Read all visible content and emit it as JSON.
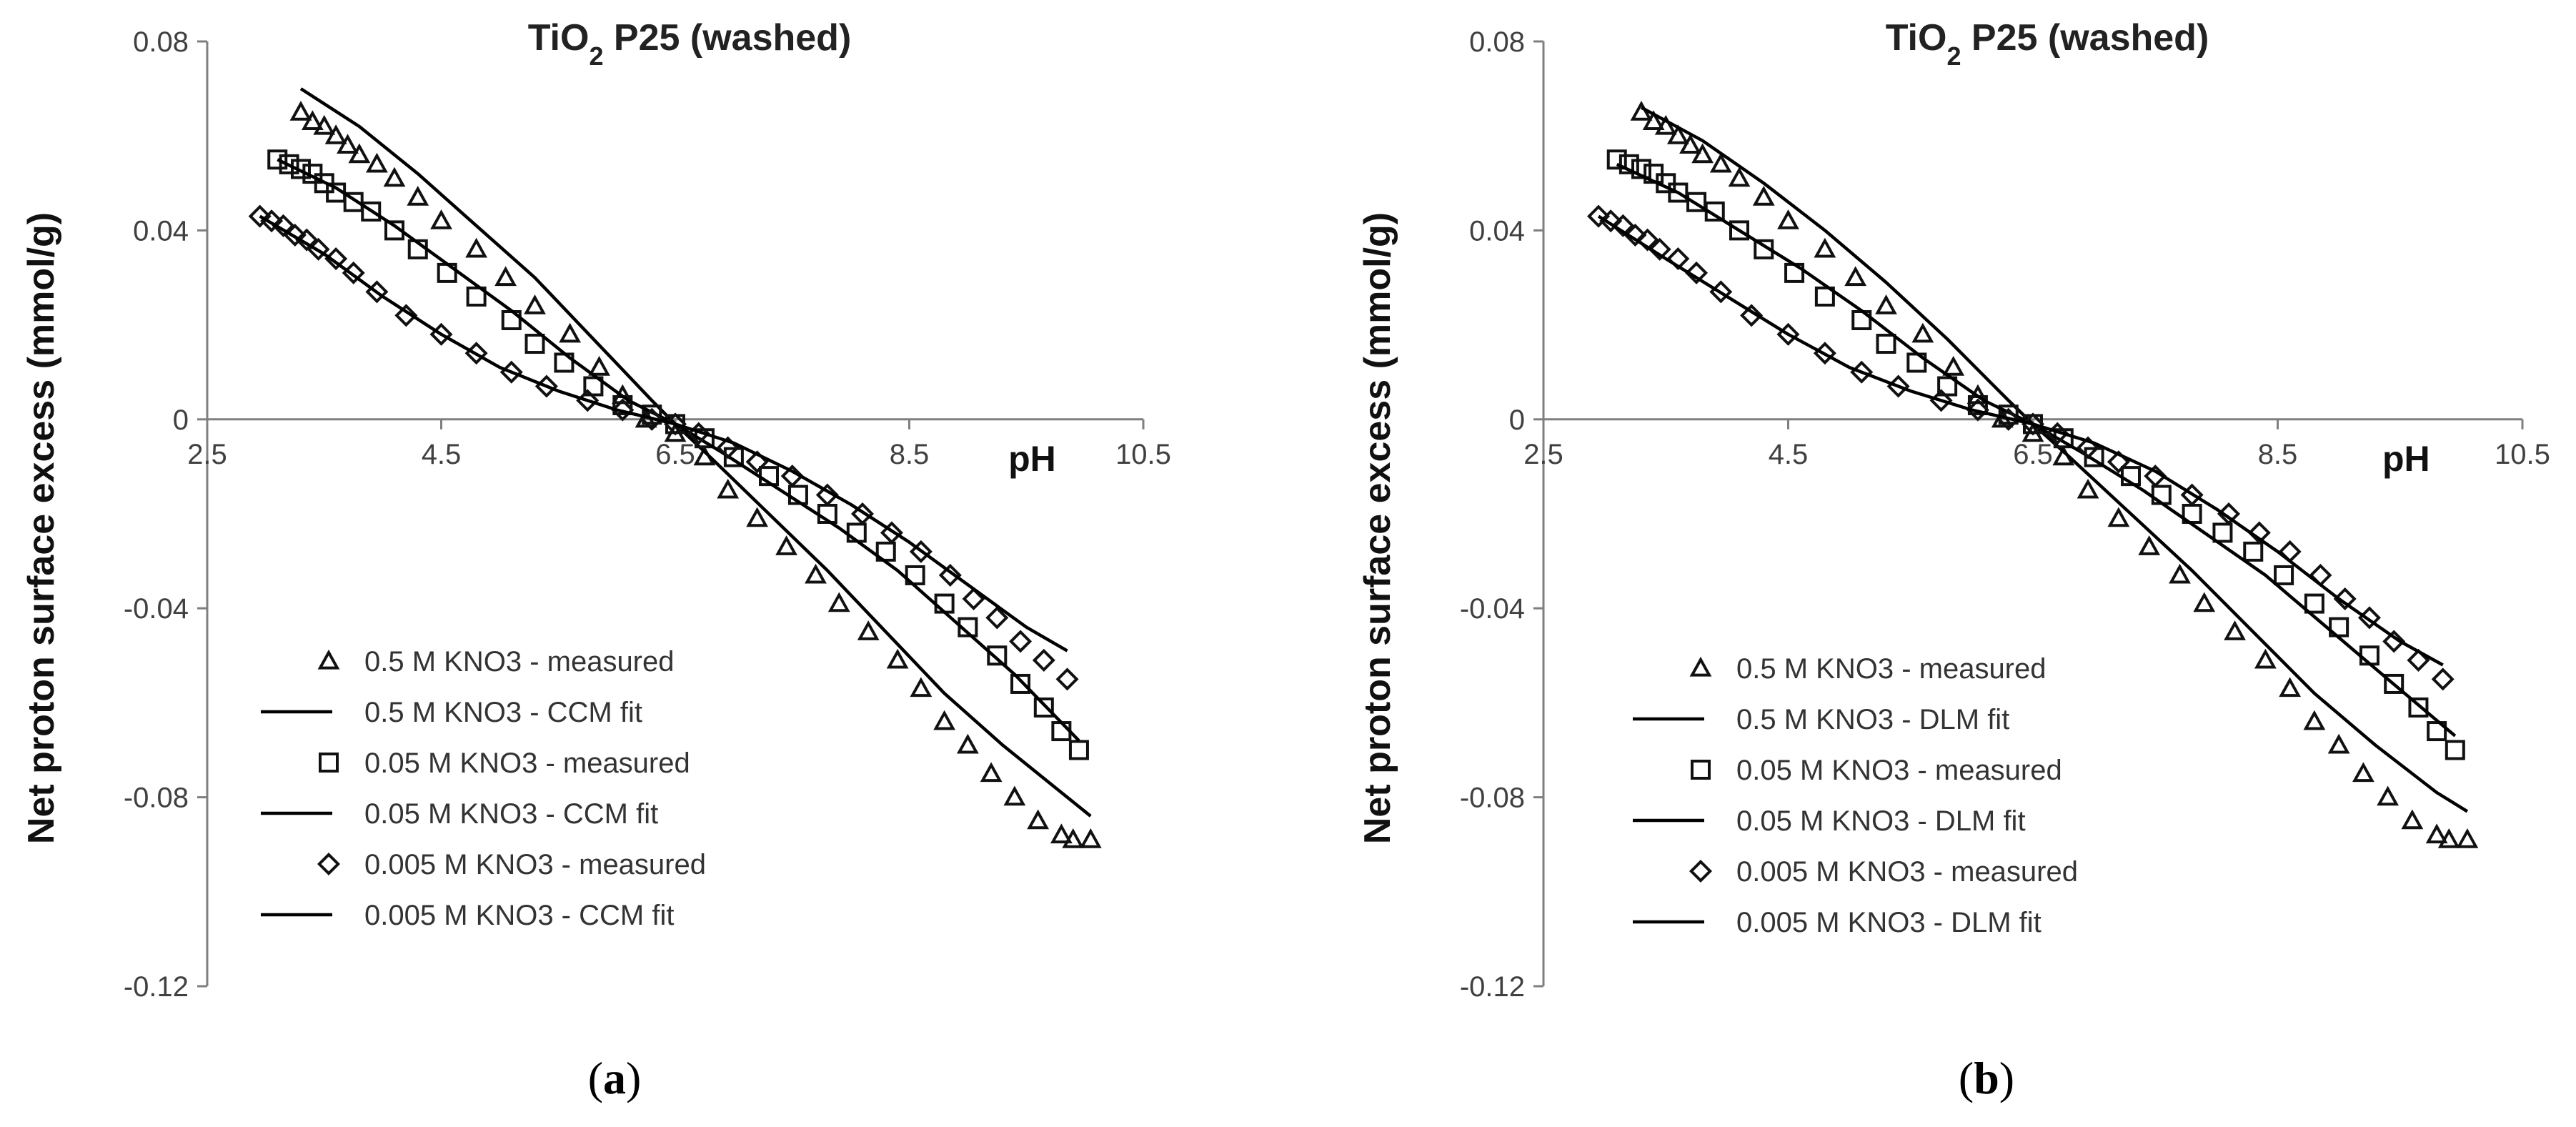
{
  "chart_data": [
    {
      "type": "scatter",
      "panel": "a",
      "caption": "a",
      "title": "TiO",
      "title_sub": "2",
      "title_rest": " P25 (washed)",
      "xlabel": "pH",
      "ylabel": "Net proton surface excess (mmol/g)",
      "xlim": [
        2.5,
        10.5
      ],
      "ylim": [
        -0.12,
        0.08
      ],
      "xticks": [
        "2.5",
        "4.5",
        "6.5",
        "8.5",
        "10.5"
      ],
      "xtick_values": [
        2.5,
        4.5,
        6.5,
        8.5,
        10.5
      ],
      "yticks": [
        "0.08",
        "0.04",
        "0",
        "-0.04",
        "-0.08",
        "-0.12"
      ],
      "ytick_values": [
        0.08,
        0.04,
        0,
        -0.04,
        -0.08,
        -0.12
      ],
      "legend_position": "lower-left",
      "series": [
        {
          "name": "0.5 M KNO3 - measured",
          "kind": "measured",
          "marker": "triangle",
          "x": [
            3.3,
            3.4,
            3.5,
            3.6,
            3.7,
            3.8,
            3.95,
            4.1,
            4.3,
            4.5,
            4.8,
            5.05,
            5.3,
            5.6,
            5.85,
            6.05,
            6.25,
            6.5,
            6.75,
            6.95,
            7.2,
            7.45,
            7.7,
            7.9,
            8.15,
            8.4,
            8.6,
            8.8,
            9.0,
            9.2,
            9.4,
            9.6,
            9.8,
            9.9,
            10.05
          ],
          "y": [
            0.065,
            0.063,
            0.062,
            0.06,
            0.058,
            0.056,
            0.054,
            0.051,
            0.047,
            0.042,
            0.036,
            0.03,
            0.024,
            0.018,
            0.011,
            0.005,
            0.0,
            -0.003,
            -0.008,
            -0.015,
            -0.021,
            -0.027,
            -0.033,
            -0.039,
            -0.045,
            -0.051,
            -0.057,
            -0.064,
            -0.069,
            -0.075,
            -0.08,
            -0.085,
            -0.088,
            -0.089,
            -0.089
          ]
        },
        {
          "name": "0.5 M KNO3 - CCM fit",
          "kind": "fit",
          "x": [
            3.3,
            3.8,
            4.3,
            4.8,
            5.3,
            5.8,
            6.3,
            6.5,
            6.8,
            7.3,
            7.8,
            8.3,
            8.8,
            9.3,
            9.8,
            10.05
          ],
          "y": [
            0.07,
            0.062,
            0.052,
            0.041,
            0.03,
            0.017,
            0.004,
            -0.001,
            -0.008,
            -0.02,
            -0.032,
            -0.045,
            -0.058,
            -0.069,
            -0.079,
            -0.084
          ]
        },
        {
          "name": "0.05 M KNO3 - measured",
          "kind": "measured",
          "marker": "square",
          "x": [
            3.1,
            3.2,
            3.3,
            3.4,
            3.5,
            3.6,
            3.75,
            3.9,
            4.1,
            4.3,
            4.55,
            4.8,
            5.1,
            5.3,
            5.55,
            5.8,
            6.05,
            6.3,
            6.5,
            6.75,
            7.0,
            7.3,
            7.55,
            7.8,
            8.05,
            8.3,
            8.55,
            8.8,
            9.0,
            9.25,
            9.45,
            9.65,
            9.8,
            9.95
          ],
          "y": [
            0.055,
            0.054,
            0.053,
            0.052,
            0.05,
            0.048,
            0.046,
            0.044,
            0.04,
            0.036,
            0.031,
            0.026,
            0.021,
            0.016,
            0.012,
            0.007,
            0.003,
            0.001,
            -0.001,
            -0.004,
            -0.008,
            -0.012,
            -0.016,
            -0.02,
            -0.024,
            -0.028,
            -0.033,
            -0.039,
            -0.044,
            -0.05,
            -0.056,
            -0.061,
            -0.066,
            -0.07
          ]
        },
        {
          "name": "0.05 M KNO3 - CCM fit",
          "kind": "fit",
          "x": [
            3.1,
            3.6,
            4.1,
            4.6,
            5.1,
            5.6,
            6.1,
            6.5,
            6.9,
            7.4,
            7.9,
            8.4,
            8.9,
            9.4,
            9.95
          ],
          "y": [
            0.055,
            0.049,
            0.041,
            0.032,
            0.023,
            0.013,
            0.004,
            -0.001,
            -0.007,
            -0.015,
            -0.023,
            -0.032,
            -0.043,
            -0.054,
            -0.068
          ]
        },
        {
          "name": "0.005 M KNO3 - measured",
          "kind": "measured",
          "marker": "diamond",
          "x": [
            2.95,
            3.05,
            3.15,
            3.25,
            3.35,
            3.45,
            3.6,
            3.75,
            3.95,
            4.2,
            4.5,
            4.8,
            5.1,
            5.4,
            5.75,
            6.05,
            6.3,
            6.5,
            6.7,
            6.95,
            7.2,
            7.5,
            7.8,
            8.1,
            8.35,
            8.6,
            8.85,
            9.05,
            9.25,
            9.45,
            9.65,
            9.85
          ],
          "y": [
            0.043,
            0.042,
            0.041,
            0.039,
            0.038,
            0.036,
            0.034,
            0.031,
            0.027,
            0.022,
            0.018,
            0.014,
            0.01,
            0.007,
            0.004,
            0.002,
            0.0,
            -0.001,
            -0.003,
            -0.006,
            -0.009,
            -0.012,
            -0.016,
            -0.02,
            -0.024,
            -0.028,
            -0.033,
            -0.038,
            -0.042,
            -0.047,
            -0.051,
            -0.055
          ]
        },
        {
          "name": "0.005 M KNO3 - CCM fit",
          "kind": "fit",
          "x": [
            2.95,
            3.5,
            4.0,
            4.5,
            5.0,
            5.5,
            6.0,
            6.5,
            7.0,
            7.5,
            8.0,
            8.5,
            9.0,
            9.5,
            9.85
          ],
          "y": [
            0.043,
            0.035,
            0.026,
            0.018,
            0.011,
            0.006,
            0.002,
            -0.001,
            -0.005,
            -0.011,
            -0.018,
            -0.026,
            -0.035,
            -0.044,
            -0.049
          ]
        }
      ]
    },
    {
      "type": "scatter",
      "panel": "b",
      "caption": "b",
      "title": "TiO",
      "title_sub": "2",
      "title_rest": " P25 (washed)",
      "xlabel": "pH",
      "ylabel": "Net proton surface excess (mmol/g)",
      "xlim": [
        2.5,
        10.5
      ],
      "ylim": [
        -0.12,
        0.08
      ],
      "xticks": [
        "2.5",
        "4.5",
        "6.5",
        "8.5",
        "10.5"
      ],
      "xtick_values": [
        2.5,
        4.5,
        6.5,
        8.5,
        10.5
      ],
      "yticks": [
        "0.08",
        "0.04",
        "0",
        "-0.04",
        "-0.08",
        "-0.12"
      ],
      "ytick_values": [
        0.08,
        0.04,
        0,
        -0.04,
        -0.08,
        -0.12
      ],
      "legend_position": "lower-left",
      "series": [
        {
          "name": "0.5 M KNO3 - measured",
          "kind": "measured",
          "marker": "triangle",
          "x": [
            3.3,
            3.4,
            3.5,
            3.6,
            3.7,
            3.8,
            3.95,
            4.1,
            4.3,
            4.5,
            4.8,
            5.05,
            5.3,
            5.6,
            5.85,
            6.05,
            6.25,
            6.5,
            6.75,
            6.95,
            7.2,
            7.45,
            7.7,
            7.9,
            8.15,
            8.4,
            8.6,
            8.8,
            9.0,
            9.2,
            9.4,
            9.6,
            9.8,
            9.9,
            10.05
          ],
          "y": [
            0.065,
            0.063,
            0.062,
            0.06,
            0.058,
            0.056,
            0.054,
            0.051,
            0.047,
            0.042,
            0.036,
            0.03,
            0.024,
            0.018,
            0.011,
            0.005,
            0.0,
            -0.003,
            -0.008,
            -0.015,
            -0.021,
            -0.027,
            -0.033,
            -0.039,
            -0.045,
            -0.051,
            -0.057,
            -0.064,
            -0.069,
            -0.075,
            -0.08,
            -0.085,
            -0.088,
            -0.089,
            -0.089
          ]
        },
        {
          "name": "0.5 M KNO3 - DLM fit",
          "kind": "fit",
          "x": [
            3.3,
            3.8,
            4.3,
            4.8,
            5.3,
            5.8,
            6.3,
            6.5,
            6.8,
            7.3,
            7.8,
            8.3,
            8.8,
            9.3,
            9.8,
            10.05
          ],
          "y": [
            0.066,
            0.059,
            0.05,
            0.04,
            0.029,
            0.017,
            0.004,
            -0.001,
            -0.008,
            -0.02,
            -0.032,
            -0.045,
            -0.058,
            -0.069,
            -0.079,
            -0.083
          ]
        },
        {
          "name": "0.05 M KNO3 - measured",
          "kind": "measured",
          "marker": "square",
          "x": [
            3.1,
            3.2,
            3.3,
            3.4,
            3.5,
            3.6,
            3.75,
            3.9,
            4.1,
            4.3,
            4.55,
            4.8,
            5.1,
            5.3,
            5.55,
            5.8,
            6.05,
            6.3,
            6.5,
            6.75,
            7.0,
            7.3,
            7.55,
            7.8,
            8.05,
            8.3,
            8.55,
            8.8,
            9.0,
            9.25,
            9.45,
            9.65,
            9.8,
            9.95
          ],
          "y": [
            0.055,
            0.054,
            0.053,
            0.052,
            0.05,
            0.048,
            0.046,
            0.044,
            0.04,
            0.036,
            0.031,
            0.026,
            0.021,
            0.016,
            0.012,
            0.007,
            0.003,
            0.001,
            -0.001,
            -0.004,
            -0.008,
            -0.012,
            -0.016,
            -0.02,
            -0.024,
            -0.028,
            -0.033,
            -0.039,
            -0.044,
            -0.05,
            -0.056,
            -0.061,
            -0.066,
            -0.07
          ]
        },
        {
          "name": "0.05 M KNO3 - DLM fit",
          "kind": "fit",
          "x": [
            3.1,
            3.6,
            4.1,
            4.6,
            5.1,
            5.6,
            6.1,
            6.5,
            6.9,
            7.4,
            7.9,
            8.4,
            8.9,
            9.4,
            9.95
          ],
          "y": [
            0.054,
            0.048,
            0.04,
            0.032,
            0.023,
            0.013,
            0.004,
            -0.001,
            -0.007,
            -0.015,
            -0.024,
            -0.033,
            -0.044,
            -0.055,
            -0.067
          ]
        },
        {
          "name": "0.005 M KNO3 - measured",
          "kind": "measured",
          "marker": "diamond",
          "x": [
            2.95,
            3.05,
            3.15,
            3.25,
            3.35,
            3.45,
            3.6,
            3.75,
            3.95,
            4.2,
            4.5,
            4.8,
            5.1,
            5.4,
            5.75,
            6.05,
            6.3,
            6.5,
            6.7,
            6.95,
            7.2,
            7.5,
            7.8,
            8.1,
            8.35,
            8.6,
            8.85,
            9.05,
            9.25,
            9.45,
            9.65,
            9.85
          ],
          "y": [
            0.043,
            0.042,
            0.041,
            0.039,
            0.038,
            0.036,
            0.034,
            0.031,
            0.027,
            0.022,
            0.018,
            0.014,
            0.01,
            0.007,
            0.004,
            0.002,
            0.0,
            -0.001,
            -0.003,
            -0.006,
            -0.009,
            -0.012,
            -0.016,
            -0.02,
            -0.024,
            -0.028,
            -0.033,
            -0.038,
            -0.042,
            -0.047,
            -0.051,
            -0.055
          ]
        },
        {
          "name": "0.005 M KNO3 - DLM fit",
          "kind": "fit",
          "x": [
            2.95,
            3.5,
            4.0,
            4.5,
            5.0,
            5.5,
            6.0,
            6.5,
            7.0,
            7.5,
            8.0,
            8.5,
            9.0,
            9.5,
            9.85
          ],
          "y": [
            0.043,
            0.034,
            0.026,
            0.018,
            0.011,
            0.006,
            0.002,
            -0.001,
            -0.005,
            -0.011,
            -0.019,
            -0.028,
            -0.038,
            -0.047,
            -0.052
          ]
        }
      ]
    }
  ]
}
